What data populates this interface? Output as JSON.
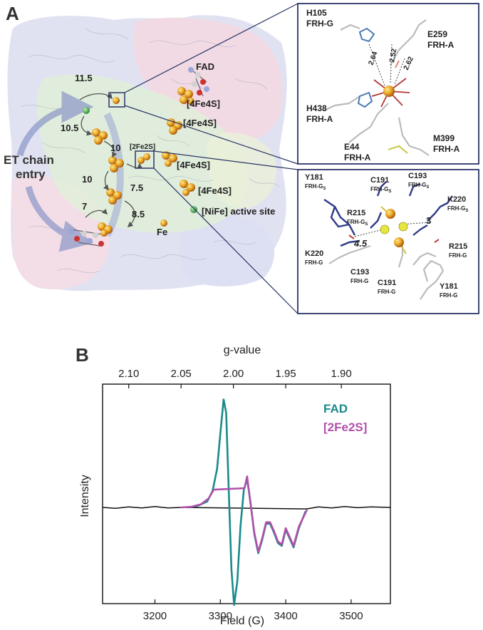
{
  "panel_a": {
    "letter": "A",
    "labels": {
      "fad": "FAD",
      "fes_a": "[4Fe4S]",
      "fes_b": "[4Fe4S]",
      "fes_c": "[4Fe4S]",
      "fes_d": "[4Fe4S]",
      "fe2s": "[2Fe2S]",
      "nife": "[NiFe] active site",
      "fe": "Fe",
      "entry1": "ET chain",
      "entry2": "entry"
    },
    "distances": {
      "d1": "11.5",
      "d2": "10.5",
      "d3": "10",
      "d4": "10",
      "d5": "7.5",
      "d6": "7",
      "d7": "8.5"
    },
    "inset_top": {
      "h105": "H105",
      "h105_sub": "FRH-G",
      "e259": "E259",
      "e259_sub": "FRH-A",
      "h438": "H438",
      "h438_sub": "FRH-A",
      "e44": "E44",
      "e44_sub": "FRH-A",
      "m399": "M399",
      "m399_sub": "FRH-A",
      "bond1": "2.64",
      "bond2": "2.52",
      "bond3": "2.62"
    },
    "inset_bottom": {
      "y181a": "Y181",
      "y181a_sub": "FRH-G",
      "y181a_subs": "S",
      "c191a": "C191",
      "c191a_sub": "FRH-G",
      "c191a_subs": "S",
      "c193a": "C193",
      "c193a_sub": "FRH-G",
      "c193a_subs": "S",
      "k220a": "K220",
      "k220a_sub": "FRH-G",
      "k220a_subs": "S",
      "r215a": "R215",
      "r215a_sub": "FRH-G",
      "r215a_subs": "S",
      "dist_a": "4.5",
      "dist_b": "3",
      "k220b": "K220",
      "k220b_sub": "FRH-G",
      "r215b": "R215",
      "r215b_sub": "FRH-G",
      "c193b": "C193",
      "c193b_sub": "FRH-G",
      "c191b": "C191",
      "c191b_sub": "FRH-G",
      "y181b": "Y181",
      "y181b_sub": "FRH-G"
    }
  },
  "panel_b": {
    "letter": "B"
  },
  "chart_data": {
    "type": "line",
    "title": "",
    "xlabel": "Field (G)",
    "ylabel": "Intensity",
    "top_axis_label": "g-value",
    "xlim": [
      3120,
      3560
    ],
    "x_ticks": [
      3200,
      3300,
      3400,
      3500
    ],
    "top_axis_ticks": [
      {
        "label": "2.10",
        "field": 3160
      },
      {
        "label": "2.05",
        "field": 3240
      },
      {
        "label": "2.00",
        "field": 3320
      },
      {
        "label": "1.95",
        "field": 3400
      },
      {
        "label": "1.90",
        "field": 3485
      }
    ],
    "legend_position": "top-right",
    "series": [
      {
        "name": "FAD",
        "color": "#1a8a8a",
        "x": [
          3250,
          3265,
          3280,
          3288,
          3295,
          3300,
          3305,
          3309,
          3313,
          3317,
          3321,
          3326,
          3331,
          3336,
          3341,
          3346,
          3352,
          3358,
          3364,
          3370,
          3376,
          3382,
          3388,
          3394,
          3400,
          3406,
          3412,
          3420,
          3430
        ],
        "y": [
          0.0,
          0.05,
          0.2,
          0.55,
          1.3,
          2.5,
          3.65,
          3.2,
          0.5,
          -2.1,
          -3.3,
          -2.5,
          -0.6,
          0.6,
          0.95,
          0.2,
          -0.9,
          -1.55,
          -1.1,
          -0.55,
          -0.55,
          -0.85,
          -1.2,
          -1.3,
          -0.75,
          -1.05,
          -1.35,
          -0.7,
          -0.15
        ]
      },
      {
        "name": "[2Fe2S]",
        "color": "#b050a8",
        "x": [
          3240,
          3255,
          3270,
          3282,
          3290,
          3337,
          3341,
          3346,
          3352,
          3358,
          3364,
          3370,
          3376,
          3382,
          3388,
          3394,
          3400,
          3406,
          3412,
          3420,
          3432
        ],
        "y": [
          0.0,
          0.02,
          0.1,
          0.3,
          0.6,
          0.65,
          1.05,
          0.15,
          -0.85,
          -1.5,
          -1.05,
          -0.5,
          -0.5,
          -0.8,
          -1.15,
          -1.25,
          -0.7,
          -1.0,
          -1.3,
          -0.65,
          -0.1
        ]
      },
      {
        "name": "",
        "color": "#111111",
        "x": [
          3120,
          3140,
          3160,
          3180,
          3200,
          3220,
          3240,
          3432,
          3450,
          3470,
          3490,
          3510,
          3530,
          3560
        ],
        "y": [
          0.0,
          -0.03,
          0.02,
          -0.02,
          0.03,
          -0.02,
          0.0,
          -0.05,
          0.02,
          -0.02,
          0.03,
          -0.01,
          0.02,
          0.0
        ]
      }
    ]
  }
}
